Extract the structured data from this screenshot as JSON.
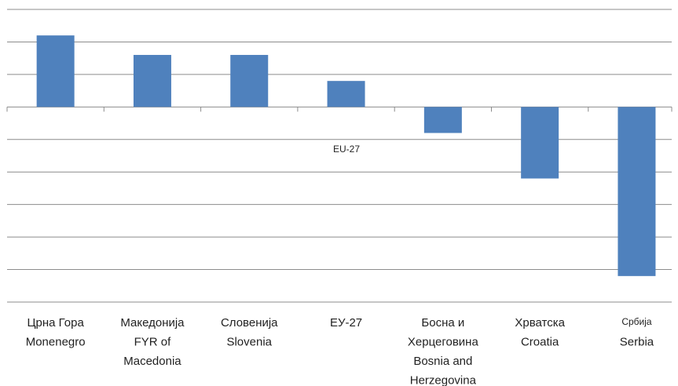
{
  "chart_data": {
    "type": "bar",
    "categories": [
      [
        "Црна Гора",
        "Monenegro"
      ],
      [
        "Македонија",
        "FYR of",
        "Macedonia"
      ],
      [
        "Словенија",
        "Slovenia"
      ],
      [
        "ЕУ-27"
      ],
      [
        "Босна и",
        "Херцеговина",
        "Bosnia and",
        "Herzegovina"
      ],
      [
        "Хрватска",
        "Croatia"
      ],
      [
        "Србија",
        "Serbia"
      ]
    ],
    "values": [
      2.2,
      1.6,
      1.6,
      0.8,
      -0.8,
      -2.2,
      -5.2
    ],
    "color": "#4f81bd",
    "annotation": "EU-27",
    "ylim": [
      -6,
      3
    ],
    "yticks": [
      -6,
      -5,
      -4,
      -3,
      -2,
      -1,
      0,
      1,
      2,
      3
    ],
    "grid": true
  }
}
